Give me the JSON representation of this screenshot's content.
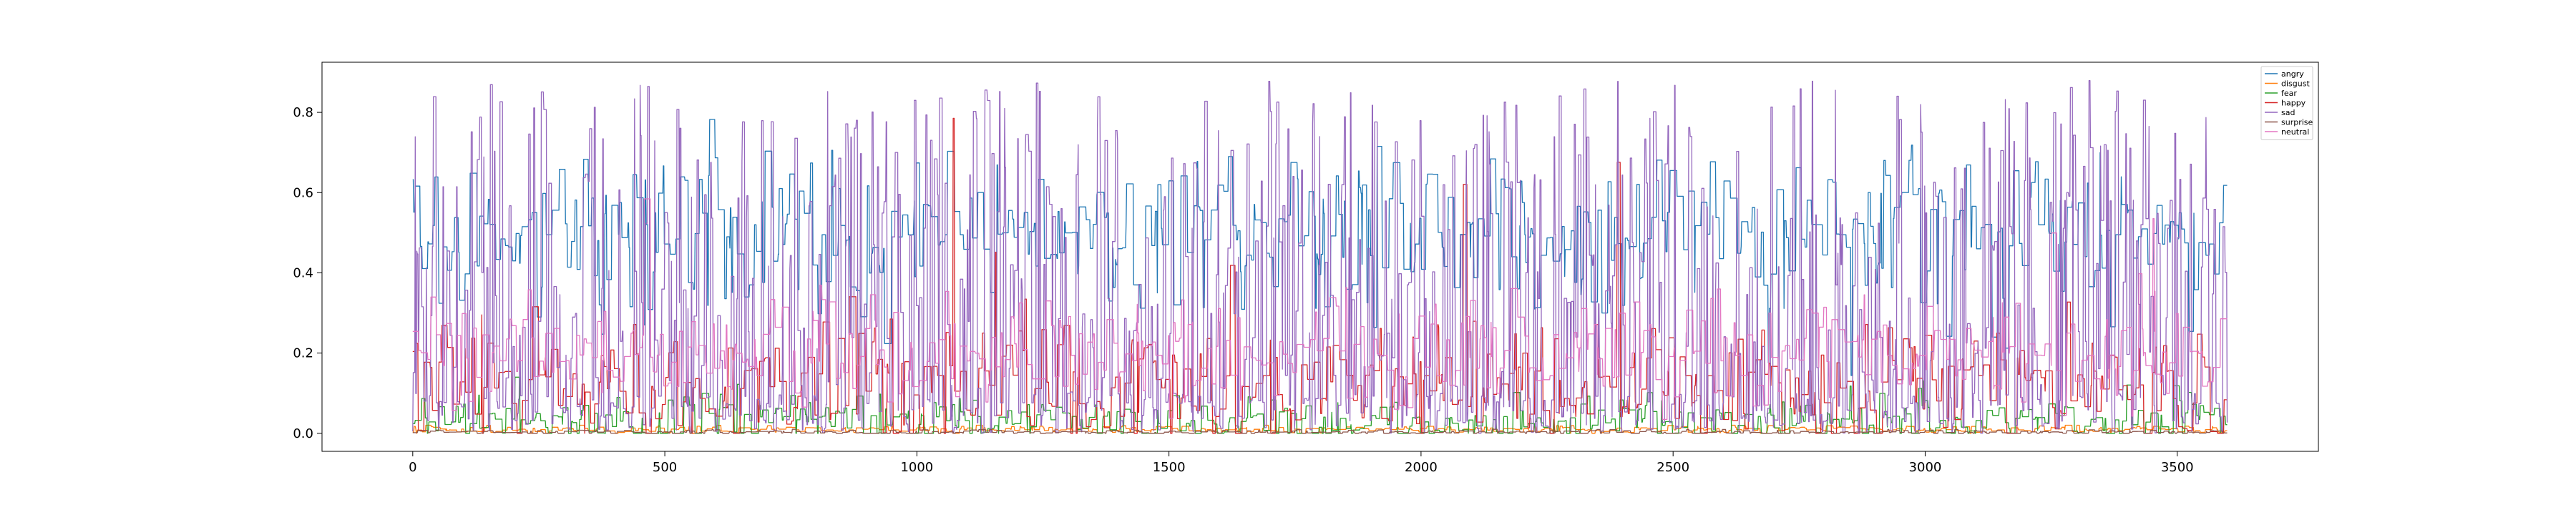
{
  "chart_data": {
    "type": "line",
    "title": "",
    "xlabel": "",
    "ylabel": "",
    "xlim": [
      -180,
      3780
    ],
    "ylim": [
      -0.045,
      0.925
    ],
    "x_ticks": [
      0,
      500,
      1000,
      1500,
      2000,
      2500,
      3000,
      3500
    ],
    "y_ticks": [
      0.0,
      0.2,
      0.4,
      0.6,
      0.8
    ],
    "y_tick_labels": [
      "0.0",
      "0.2",
      "0.4",
      "0.6",
      "0.8"
    ],
    "grid": false,
    "legend_position": "top-right",
    "n_frames": 3600,
    "series": [
      {
        "name": "angry",
        "color": "#1f77b4",
        "typical": 0.5,
        "spread": 0.1,
        "range": [
          0.1,
          0.88
        ]
      },
      {
        "name": "disgust",
        "color": "#ff7f0e",
        "typical": 0.01,
        "spread": 0.005,
        "range": [
          0.0,
          0.02
        ]
      },
      {
        "name": "fear",
        "color": "#2ca02c",
        "typical": 0.03,
        "spread": 0.03,
        "range": [
          0.0,
          0.14
        ]
      },
      {
        "name": "happy",
        "color": "#d62728",
        "typical": 0.12,
        "spread": 0.08,
        "range": [
          0.0,
          0.84
        ]
      },
      {
        "name": "sad",
        "color": "#9467bd",
        "typical": 0.15,
        "spread": 0.25,
        "range": [
          0.0,
          0.88
        ]
      },
      {
        "name": "surprise",
        "color": "#8c564b",
        "typical": 0.003,
        "spread": 0.003,
        "range": [
          0.0,
          0.01
        ]
      },
      {
        "name": "neutral",
        "color": "#e377c2",
        "typical": 0.2,
        "spread": 0.07,
        "range": [
          0.0,
          0.8
        ]
      }
    ]
  }
}
